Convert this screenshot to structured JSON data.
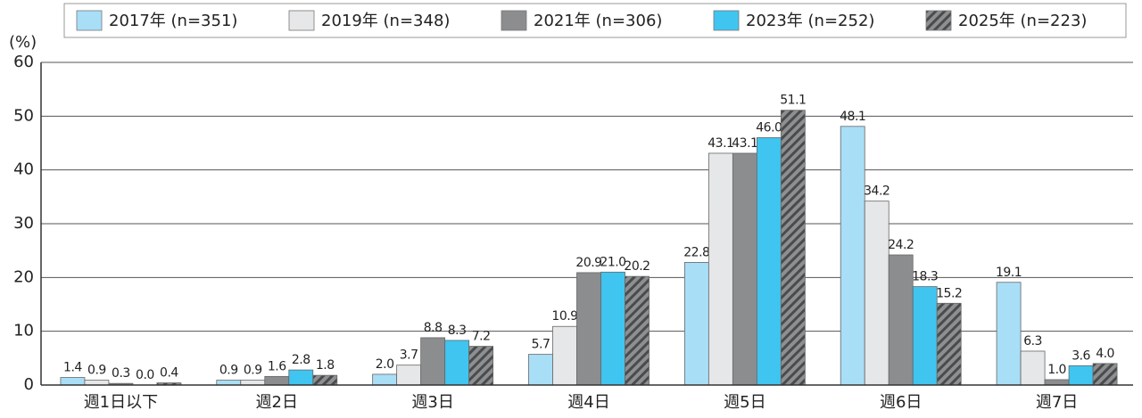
{
  "chart_data": {
    "type": "bar",
    "y_label": "(%)",
    "categories": [
      "週1日以下",
      "週2日",
      "週3日",
      "週4日",
      "週5日",
      "週6日",
      "週7日"
    ],
    "series": [
      {
        "name": "2017年 (n=351)",
        "color": "#a9def7",
        "values": [
          1.4,
          0.9,
          2.0,
          5.7,
          22.8,
          48.1,
          19.1
        ],
        "value_labels": [
          "1.4",
          "0.9",
          "2.0",
          "5.7",
          "22.8",
          "48.1",
          "19.1"
        ]
      },
      {
        "name": "2019年 (n=348)",
        "color": "#e6e7e8",
        "values": [
          0.9,
          0.9,
          3.7,
          10.9,
          43.1,
          34.2,
          6.3
        ],
        "value_labels": [
          "0.9",
          "0.9",
          "3.7",
          "10.9",
          "43.1",
          "34.2",
          "6.3"
        ]
      },
      {
        "name": "2021年 (n=306)",
        "color": "#8c8d8f",
        "values": [
          0.3,
          1.6,
          8.8,
          20.9,
          43.1,
          24.2,
          1.0
        ],
        "value_labels": [
          "0.3",
          "1.6",
          "8.8",
          "20.9",
          "43.1",
          "24.2",
          "1.0"
        ]
      },
      {
        "name": "2023年 (n=252)",
        "color": "#3fc5f0",
        "values": [
          0.0,
          2.8,
          8.3,
          21.0,
          46.0,
          18.3,
          3.6
        ],
        "value_labels": [
          "0.0",
          "2.8",
          "8.3",
          "21.0",
          "46.0",
          "18.3",
          "3.6"
        ]
      },
      {
        "name": "2025年 (n=223)",
        "color": "#6d6e70",
        "pattern": "hatch",
        "values": [
          0.4,
          1.8,
          7.2,
          20.2,
          51.1,
          15.2,
          4.0
        ],
        "value_labels": [
          "0.4",
          "1.8",
          "7.2",
          "20.2",
          "51.1",
          "15.2",
          "4.0"
        ]
      }
    ],
    "ylim": [
      0,
      60
    ],
    "yticks": [
      0,
      10,
      20,
      30,
      40,
      50,
      60
    ],
    "grid": true,
    "legend": "top"
  }
}
